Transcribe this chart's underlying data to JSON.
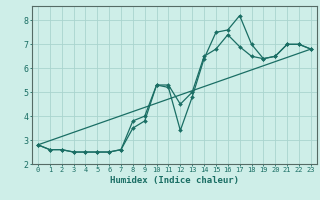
{
  "xlabel": "Humidex (Indice chaleur)",
  "bg_color": "#ceeee8",
  "line_color": "#1a6e64",
  "grid_color": "#aad4ce",
  "xlim": [
    -0.5,
    23.5
  ],
  "ylim": [
    2.0,
    8.6
  ],
  "yticks": [
    2,
    3,
    4,
    5,
    6,
    7,
    8
  ],
  "xticks": [
    0,
    1,
    2,
    3,
    4,
    5,
    6,
    7,
    8,
    9,
    10,
    11,
    12,
    13,
    14,
    15,
    16,
    17,
    18,
    19,
    20,
    21,
    22,
    23
  ],
  "line1_x": [
    0,
    1,
    2,
    3,
    4,
    5,
    6,
    7,
    8,
    9,
    10,
    11,
    12,
    13,
    14,
    15,
    16,
    17,
    18,
    19,
    20,
    21,
    22,
    23
  ],
  "line1_y": [
    2.8,
    2.6,
    2.6,
    2.5,
    2.5,
    2.5,
    2.5,
    2.6,
    3.5,
    3.8,
    5.3,
    5.2,
    3.4,
    4.8,
    6.4,
    7.5,
    7.6,
    8.2,
    7.0,
    6.4,
    6.5,
    7.0,
    7.0,
    6.8
  ],
  "line2_x": [
    0,
    1,
    2,
    3,
    4,
    5,
    6,
    7,
    8,
    9,
    10,
    11,
    12,
    13,
    14,
    15,
    16,
    17,
    18,
    19,
    20,
    21,
    22,
    23
  ],
  "line2_y": [
    2.8,
    2.6,
    2.6,
    2.5,
    2.5,
    2.5,
    2.5,
    2.6,
    3.8,
    4.0,
    5.3,
    5.3,
    4.5,
    5.0,
    6.5,
    6.8,
    7.4,
    6.9,
    6.5,
    6.4,
    6.5,
    7.0,
    7.0,
    6.8
  ],
  "line3_x": [
    0,
    23
  ],
  "line3_y": [
    2.8,
    6.8
  ]
}
